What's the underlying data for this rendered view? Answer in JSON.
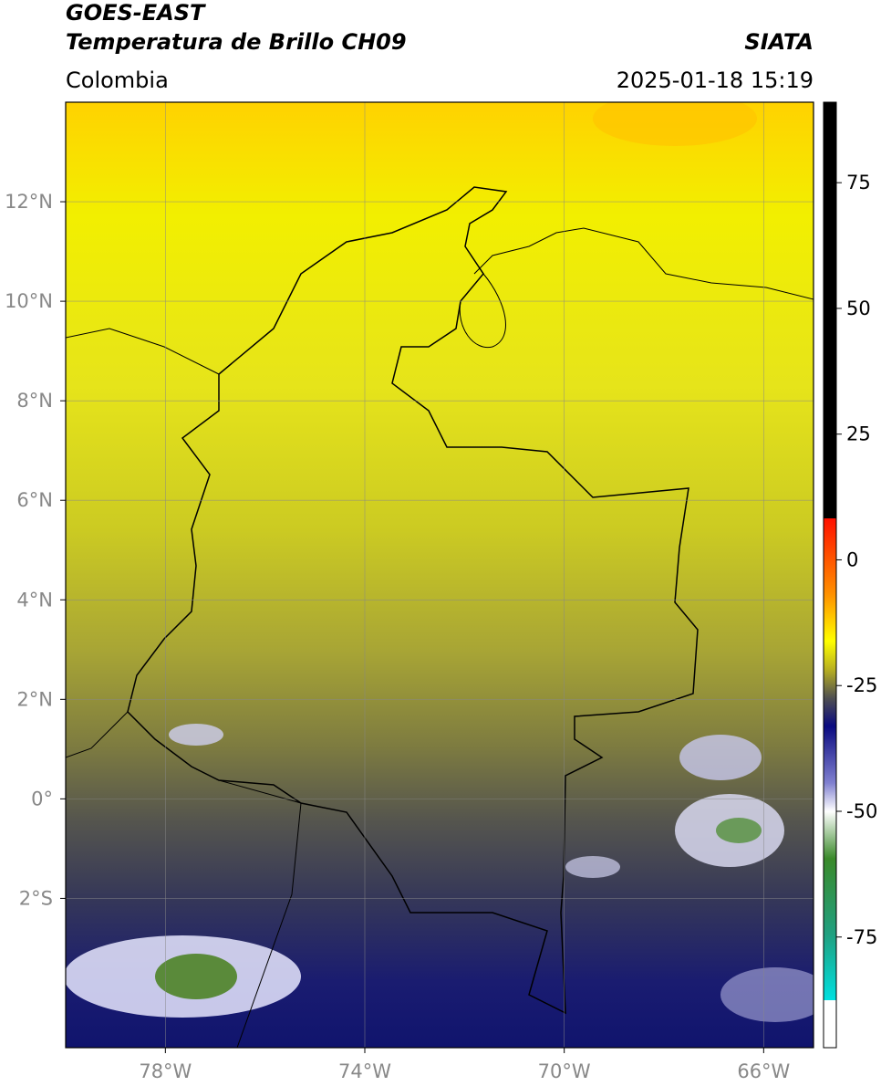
{
  "header": {
    "title": "GOES-EAST",
    "subtitle": "Temperatura de Brillo CH09",
    "source": "SIATA",
    "region": "Colombia",
    "datetime": "2025-01-18 15:19"
  },
  "map": {
    "xlim": [
      -80,
      -65
    ],
    "ylim": [
      -5,
      14
    ],
    "lon_ticks": [
      {
        "value": -78,
        "label": "78°W"
      },
      {
        "value": -74,
        "label": "74°W"
      },
      {
        "value": -70,
        "label": "70°W"
      },
      {
        "value": -66,
        "label": "66°W"
      }
    ],
    "lat_ticks": [
      {
        "value": 12,
        "label": "12°N"
      },
      {
        "value": 10,
        "label": "10°N"
      },
      {
        "value": 8,
        "label": "8°N"
      },
      {
        "value": 6,
        "label": "6°N"
      },
      {
        "value": 4,
        "label": "4°N"
      },
      {
        "value": 2,
        "label": "2°N"
      },
      {
        "value": 0,
        "label": "0°"
      },
      {
        "value": -2,
        "label": "2°S"
      }
    ]
  },
  "colorbar": {
    "lim": [
      -97,
      91
    ],
    "ticks": [
      75,
      50,
      25,
      0,
      -25,
      -50,
      -75
    ]
  }
}
